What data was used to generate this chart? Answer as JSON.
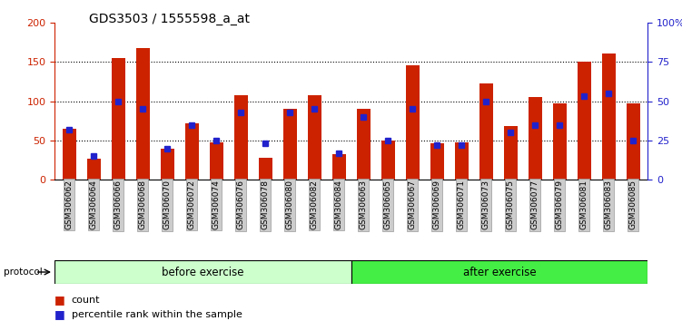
{
  "title": "GDS3503 / 1555598_a_at",
  "categories": [
    "GSM306062",
    "GSM306064",
    "GSM306066",
    "GSM306068",
    "GSM306070",
    "GSM306072",
    "GSM306074",
    "GSM306076",
    "GSM306078",
    "GSM306080",
    "GSM306082",
    "GSM306084",
    "GSM306063",
    "GSM306065",
    "GSM306067",
    "GSM306069",
    "GSM306071",
    "GSM306073",
    "GSM306075",
    "GSM306077",
    "GSM306079",
    "GSM306081",
    "GSM306083",
    "GSM306085"
  ],
  "count_values": [
    65,
    27,
    155,
    168,
    40,
    72,
    47,
    108,
    28,
    90,
    108,
    33,
    90,
    50,
    145,
    46,
    48,
    122,
    68,
    105,
    97,
    150,
    160,
    97
  ],
  "percentile_values": [
    32,
    15,
    50,
    45,
    20,
    35,
    25,
    43,
    23,
    43,
    45,
    17,
    40,
    25,
    45,
    22,
    22,
    50,
    30,
    35,
    35,
    53,
    55,
    25
  ],
  "before_count": 12,
  "after_count": 12,
  "protocol_label": "protocol",
  "before_label": "before exercise",
  "after_label": "after exercise",
  "legend_count": "count",
  "legend_percentile": "percentile rank within the sample",
  "ylim_left": [
    0,
    200
  ],
  "ylim_right": [
    0,
    100
  ],
  "yticks_left": [
    0,
    50,
    100,
    150,
    200
  ],
  "yticks_right": [
    0,
    25,
    50,
    75,
    100
  ],
  "ytick_labels_right": [
    "0",
    "25",
    "50",
    "75",
    "100%"
  ],
  "bar_color": "#cc2200",
  "percentile_color": "#2222cc",
  "before_bg": "#ccffcc",
  "after_bg": "#44ee44",
  "tick_label_bg": "#cccccc",
  "title_fontsize": 10,
  "bar_width": 0.55
}
